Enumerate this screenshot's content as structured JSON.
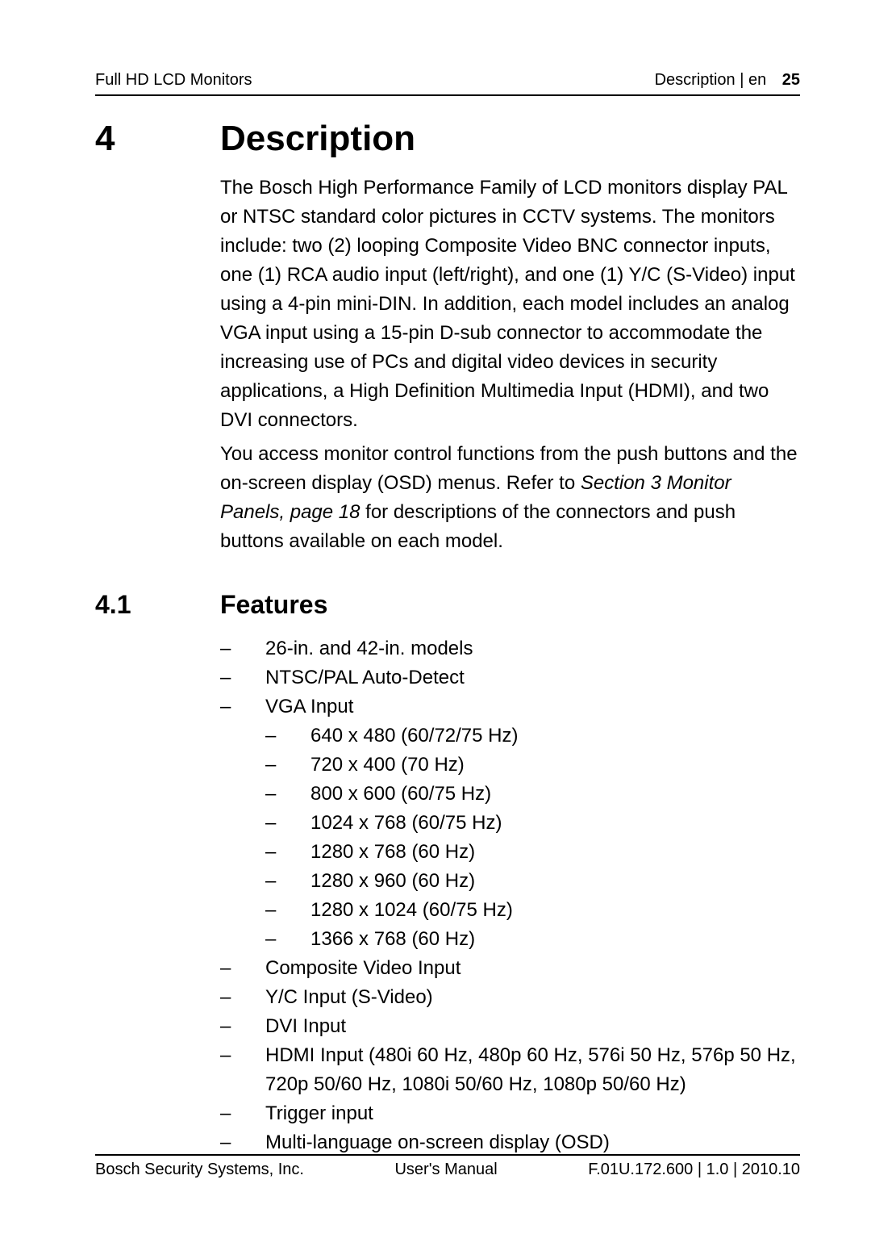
{
  "header": {
    "left": "Full HD LCD Monitors",
    "right_label": "Description | en",
    "page_num": "25"
  },
  "section": {
    "number": "4",
    "title": "Description",
    "para1": "The Bosch High Performance Family of LCD monitors display PAL or NTSC standard color pictures in CCTV systems. The monitors include: two (2) looping Composite Video BNC connector inputs, one (1) RCA audio input (left/right), and one (1) Y/C (S-Video) input using a 4-pin mini-DIN. In addition, each model includes an analog VGA input using a 15-pin D-sub connector to accommodate the increasing use of PCs and digital video devices in security applications, a High Definition Multimedia Input (HDMI), and two DVI connectors.",
    "para2a": "You access monitor control functions from the push buttons and the on-screen display (OSD) menus. Refer to ",
    "para2_ref": "Section 3 Monitor Panels, page 18",
    "para2b": " for descriptions of the connectors and push buttons available on each model."
  },
  "subsection": {
    "number": "4.1",
    "title": "Features",
    "items": [
      {
        "text": "26-in. and 42-in. models"
      },
      {
        "text": "NTSC/PAL Auto-Detect"
      },
      {
        "text": "VGA Input",
        "sub": [
          "640 x 480 (60/72/75 Hz)",
          "720 x 400 (70 Hz)",
          "800 x 600 (60/75 Hz)",
          "1024 x 768 (60/75 Hz)",
          "1280 x 768 (60 Hz)",
          "1280 x 960 (60 Hz)",
          "1280 x 1024 (60/75 Hz)",
          "1366 x 768 (60 Hz)"
        ]
      },
      {
        "text": "Composite Video Input"
      },
      {
        "text": "Y/C Input (S-Video)"
      },
      {
        "text": "DVI Input"
      },
      {
        "text": "HDMI Input (480i 60 Hz, 480p 60 Hz, 576i 50 Hz, 576p 50 Hz, 720p 50/60 Hz, 1080i 50/60 Hz, 1080p 50/60 Hz)"
      },
      {
        "text": "Trigger input"
      },
      {
        "text": "Multi-language on-screen display (OSD)"
      }
    ]
  },
  "footer": {
    "left": "Bosch Security Systems, Inc.",
    "center": "User's Manual",
    "right": "F.01U.172.600 | 1.0 | 2010.10"
  },
  "dash": "–"
}
